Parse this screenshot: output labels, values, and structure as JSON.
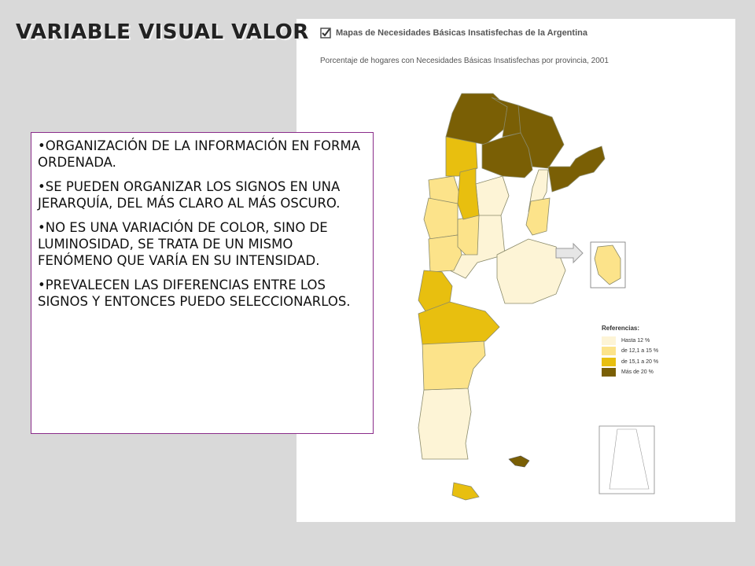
{
  "slide": {
    "title": "VARIABLE VISUAL VALOR"
  },
  "map": {
    "title": "Mapas de Necesidades Básicas Insatisfechas de la Argentina",
    "subtitle": "Porcentaje de hogares con Necesidades Básicas Insatisfechas por provincia, 2001",
    "icons": [
      "checkbox-icon",
      "arrow-right-icon"
    ],
    "legend": {
      "title": "Referencias:",
      "items": [
        {
          "label": "Hasta 12 %",
          "color": "#fdf4d6"
        },
        {
          "label": "de 12,1 a 15 %",
          "color": "#fce38a"
        },
        {
          "label": "de 15,1 a 20 %",
          "color": "#e8bf0f"
        },
        {
          "label": "Más de 20 %",
          "color": "#7a5f05"
        }
      ]
    }
  },
  "text_box": {
    "bullets": [
      "ORGANIZACIÓN DE LA INFORMACIÓN EN FORMA ORDENADA.",
      "SE PUEDEN ORGANIZAR LOS SIGNOS EN UNA JERARQUÍA, DEL MÁS CLARO AL MÁS OSCURO.",
      "NO ES UNA VARIACIÓN DE COLOR, SINO DE LUMINOSIDAD, SE TRATA DE UN MISMO FENÓMENO QUE VARÍA EN SU INTENSIDAD.",
      "PREVALECEN LAS DIFERENCIAS ENTRE LOS SIGNOS Y ENTONCES PUEDO SELECCIONARLOS."
    ]
  }
}
